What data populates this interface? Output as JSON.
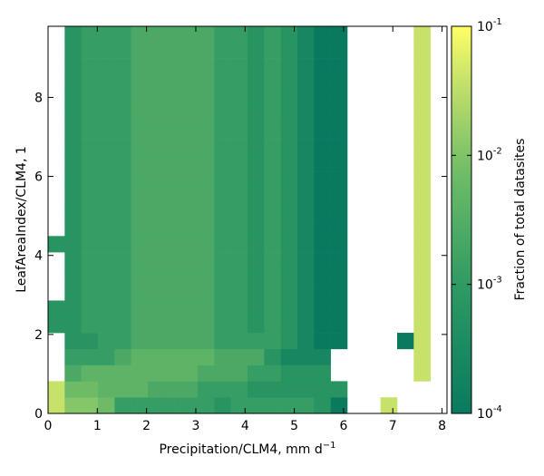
{
  "chart_data": {
    "type": "heatmap",
    "title": "",
    "xlabel": "Precipitation/CLM4,  mm d",
    "xlabel_exponent": "−1",
    "ylabel": "LeafAreaIndex/CLM4,  1",
    "xlim": [
      0,
      8.1
    ],
    "ylim": [
      0,
      9.8
    ],
    "x_ticks": [
      "0",
      "1",
      "2",
      "3",
      "4",
      "5",
      "6",
      "7",
      "8"
    ],
    "y_ticks": [
      "0",
      "2",
      "4",
      "6",
      "8"
    ],
    "bin_width_x": 0.3375,
    "bin_width_y": 0.4083,
    "colorbar": {
      "label": "Fraction of total datasites",
      "scale": "log",
      "range": [
        0.0001,
        0.1
      ],
      "ticks": [
        {
          "base": "10",
          "exp": "-1"
        },
        {
          "base": "10",
          "exp": "-2"
        },
        {
          "base": "10",
          "exp": "-3"
        },
        {
          "base": "10",
          "exp": "-4"
        }
      ],
      "colors": [
        "#0a7a5f",
        "#2e9a63",
        "#6fbc67",
        "#c2e06b",
        "#ffff66"
      ]
    },
    "value_levels": [
      0,
      0.0001,
      0.0002,
      0.0004,
      0.0007,
      0.0012,
      0.002,
      0.003,
      0.005,
      0.009,
      0.02,
      0.05
    ],
    "grid_rows_bottom_to_top": [
      "A8874444443444443100A00",
      "A7766655544433333300000",
      "0566666665554433300000A",
      "0444566666555322200000A",
      "0334455555444432110001A",
      "3344455555443432110000A",
      "3344455555443432110000A",
      "0344455555443432110000A",
      "0344455555443432110000A",
      "0344455555443432110000A",
      "3344455555443432110000A",
      "0344455555443432110000A",
      "0344455555443432110000A",
      "0344455555443432110000A",
      "0344455555443432110000A",
      "0344455555443432110000A",
      "0344455555443432110000A",
      "0344455555443432110000A",
      "0344455555443432110000A",
      "0344455555443432110000A",
      "0344455555443432110000A",
      "0344455555443432110000A",
      "0344455555443432110000A",
      "0344455555443432110000A"
    ]
  }
}
